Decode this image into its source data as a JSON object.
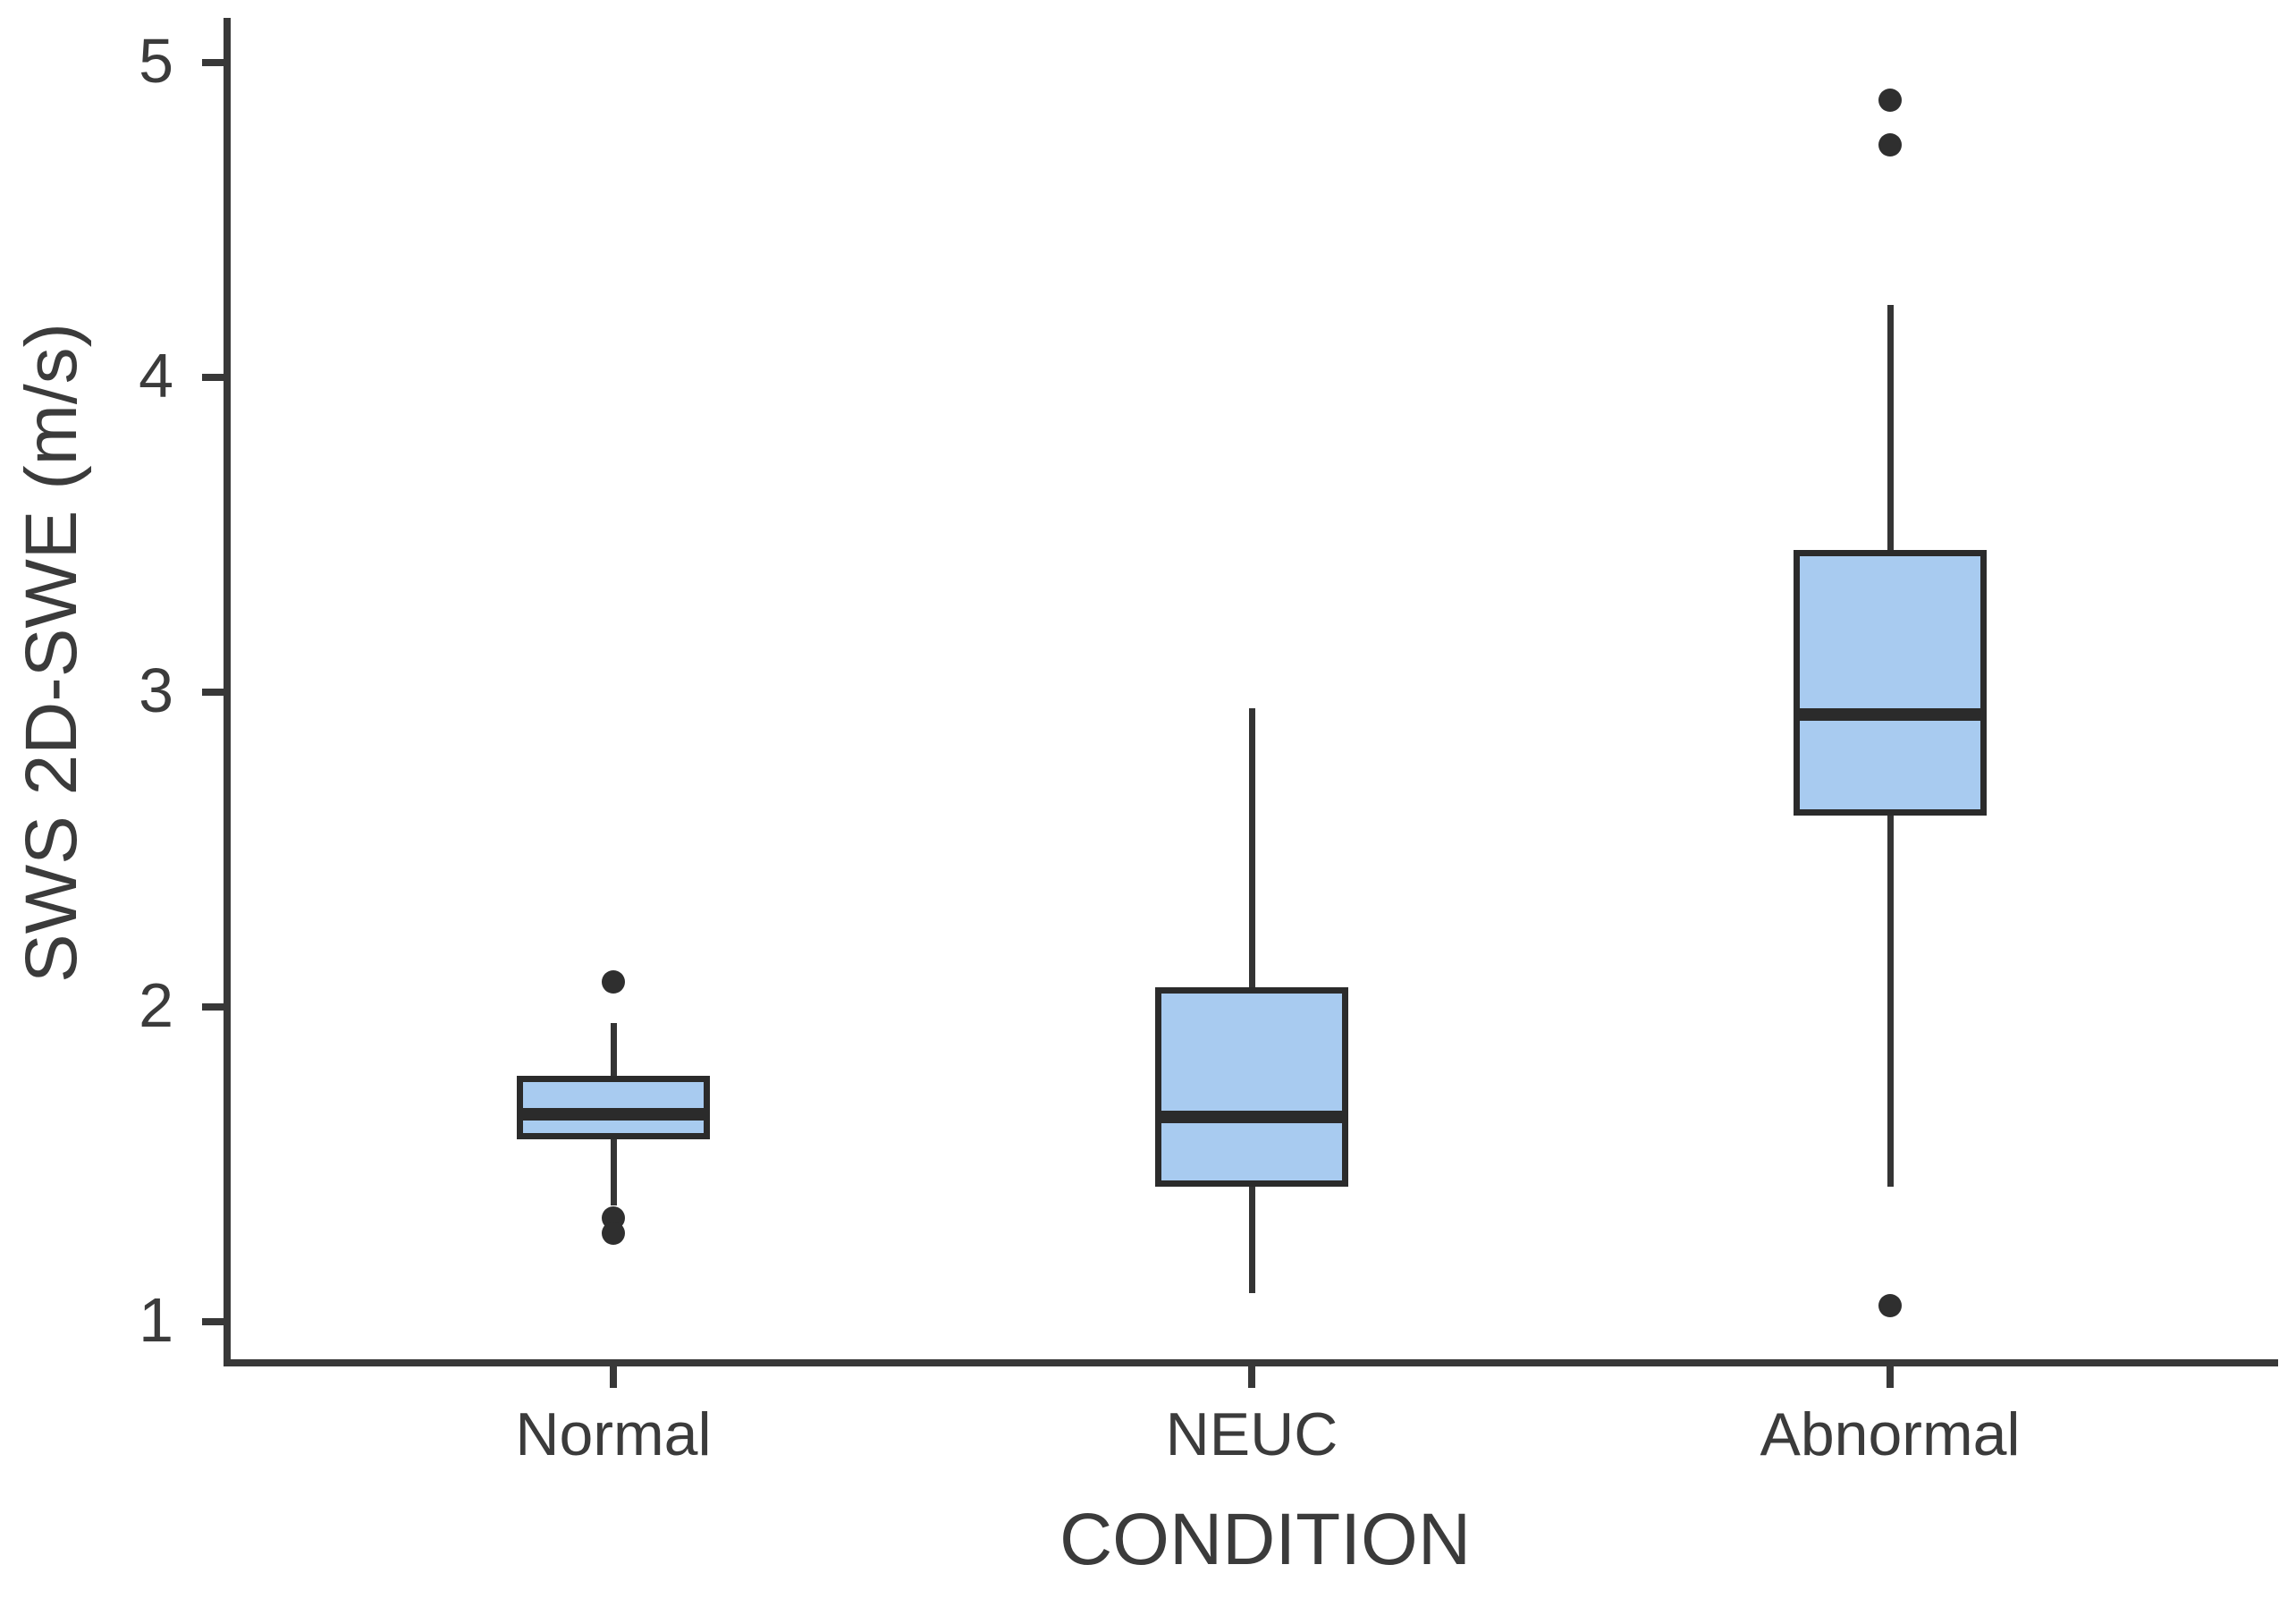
{
  "figure": {
    "background_color": "#ffffff"
  },
  "chart_data": {
    "type": "boxplot",
    "title": "",
    "xlabel": "CONDITION",
    "ylabel": "SWS 2D-SWE (m/s)",
    "categories": [
      "Normal",
      "NEUC",
      "Abnormal"
    ],
    "y_ticks": [
      1,
      2,
      3,
      4,
      5
    ],
    "ylim": [
      0.85,
      5.15
    ],
    "grid": false,
    "legend_position": "none",
    "box_fill_color": "#a8cbf0",
    "box_border_color": "#2b2b2b",
    "axis_color": "#383838",
    "text_color": "#3b3b3b",
    "outlier_color": "#2f2f2f",
    "series": [
      {
        "category": "Normal",
        "whisker_low": 1.37,
        "q1": 1.59,
        "median": 1.66,
        "q3": 1.77,
        "whisker_high": 1.95,
        "outliers": [
          2.08,
          1.33,
          1.28
        ]
      },
      {
        "category": "NEUC",
        "whisker_low": 1.09,
        "q1": 1.44,
        "median": 1.65,
        "q3": 2.05,
        "whisker_high": 2.95,
        "outliers": []
      },
      {
        "category": "Abnormal",
        "whisker_low": 1.43,
        "q1": 2.62,
        "median": 2.93,
        "q3": 3.44,
        "whisker_high": 4.23,
        "outliers": [
          4.88,
          4.74,
          1.05
        ]
      }
    ]
  }
}
